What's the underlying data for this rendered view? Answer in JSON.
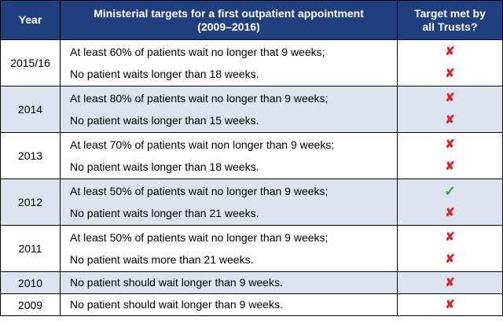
{
  "header": {
    "year": "Year",
    "target_line1": "Ministerial targets for a first outpatient appointment",
    "target_line2": "(2009–2016)",
    "met_line1": "Target met by",
    "met_line2": "all Trusts?"
  },
  "rows": [
    {
      "year": "2015/16",
      "targets": [
        "At least 60% of patients wait no longer that 9 weeks;",
        "No patient waits longer than 18 weeks."
      ],
      "met": [
        "✘",
        "✘"
      ],
      "met_icons": [
        "cross-icon",
        "cross-icon"
      ]
    },
    {
      "year": "2014",
      "targets": [
        "At least 80% of patients wait no longer than 9 weeks;",
        "No patient waits longer than 15 weeks."
      ],
      "met": [
        "✘",
        "✘"
      ],
      "met_icons": [
        "cross-icon",
        "cross-icon"
      ]
    },
    {
      "year": "2013",
      "targets": [
        "At least 70% of patients wait non longer than 9 weeks;",
        "No patient waits longer than 18 weeks."
      ],
      "met": [
        "✘",
        "✘"
      ],
      "met_icons": [
        "cross-icon",
        "cross-icon"
      ]
    },
    {
      "year": "2012",
      "targets": [
        "At least 50% of patients wait no longer than 9 weeks;",
        "No patient waits longer than 21 weeks."
      ],
      "met": [
        "✓",
        "✘"
      ],
      "met_icons": [
        "check-icon",
        "cross-icon"
      ]
    },
    {
      "year": "2011",
      "targets": [
        "At least 50% of patients wait no longer than 9 weeks;",
        "No patient waits more than 21 weeks."
      ],
      "met": [
        "✘",
        "✘"
      ],
      "met_icons": [
        "cross-icon",
        "cross-icon"
      ]
    },
    {
      "year": "2010",
      "targets": [
        "No patient should wait longer than 9 weeks."
      ],
      "met": [
        "✘"
      ],
      "met_icons": [
        "cross-icon"
      ]
    },
    {
      "year": "2009",
      "targets": [
        "No patient should wait longer than 9 weeks."
      ],
      "met": [
        "✘"
      ],
      "met_icons": [
        "cross-icon"
      ]
    }
  ],
  "colors": {
    "header_bg": "#1f3f80",
    "shaded_row": "#dde4f0",
    "cross": "#e0262b",
    "check": "#2aa64a"
  }
}
